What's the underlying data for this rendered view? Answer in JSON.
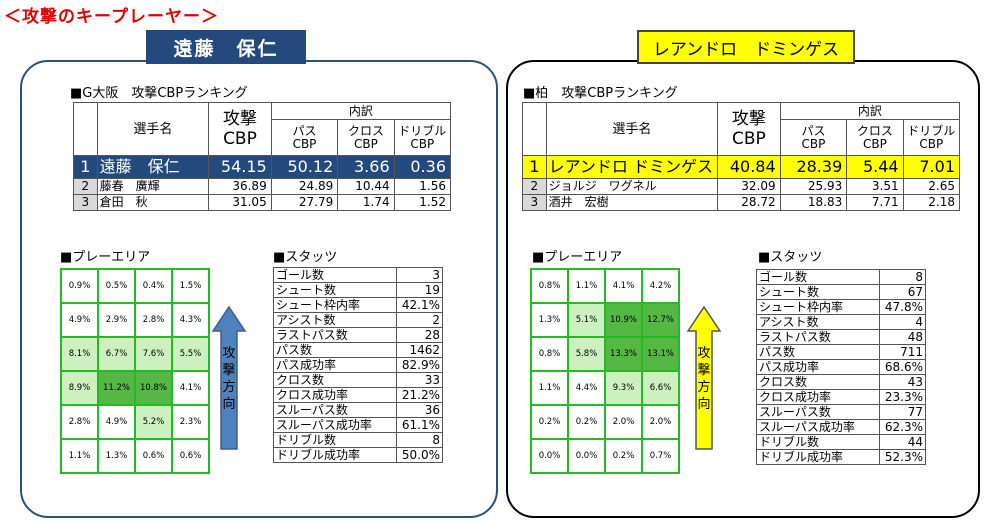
{
  "page_title": "＜攻撃のキープレーヤー＞",
  "left": {
    "player_badge": "遠藤　保仁",
    "ranking_title": "■G大阪　攻撃CBPランキング",
    "header": {
      "name": "選手名",
      "cbp_top": "攻撃",
      "cbp_bottom": "CBP",
      "breakdown": "内訳",
      "pass": "パス",
      "cross": "クロス",
      "dribble": "ドリブル",
      "sub_cbp": "CBP"
    },
    "rows": [
      {
        "rank": "1",
        "name": "遠藤　保仁",
        "cbp": "54.15",
        "pass": "50.12",
        "cross": "3.66",
        "dribble": "0.36"
      },
      {
        "rank": "2",
        "name": "藤春　廣輝",
        "cbp": "36.89",
        "pass": "24.89",
        "cross": "10.44",
        "dribble": "1.56"
      },
      {
        "rank": "3",
        "name": "倉田　秋",
        "cbp": "31.05",
        "pass": "27.79",
        "cross": "1.74",
        "dribble": "1.52"
      }
    ],
    "play_area_title": "■プレーエリア",
    "stats_title": "■スタッツ",
    "grid": [
      [
        "0.9%",
        "0.5%",
        "0.4%",
        "1.5%"
      ],
      [
        "4.9%",
        "2.9%",
        "2.8%",
        "4.3%"
      ],
      [
        "8.1%",
        "6.7%",
        "7.6%",
        "5.5%"
      ],
      [
        "8.9%",
        "11.2%",
        "10.8%",
        "4.1%"
      ],
      [
        "2.8%",
        "4.9%",
        "5.2%",
        "2.3%"
      ],
      [
        "1.1%",
        "1.3%",
        "0.6%",
        "0.6%"
      ]
    ],
    "grid_shade": [
      [
        0,
        0,
        0,
        0
      ],
      [
        0,
        0,
        0,
        0
      ],
      [
        1,
        1,
        1,
        1
      ],
      [
        1,
        3,
        3,
        0
      ],
      [
        0,
        0,
        1,
        0
      ],
      [
        0,
        0,
        0,
        0
      ]
    ],
    "arrow_color": "#4f81bd",
    "stats": [
      [
        "ゴール数",
        "3"
      ],
      [
        "シュート数",
        "19"
      ],
      [
        "シュート枠内率",
        "42.1%"
      ],
      [
        "アシスト数",
        "2"
      ],
      [
        "ラストパス数",
        "28"
      ],
      [
        "パス数",
        "1462"
      ],
      [
        "パス成功率",
        "82.9%"
      ],
      [
        "クロス数",
        "33"
      ],
      [
        "クロス成功率",
        "21.2%"
      ],
      [
        "スルーパス数",
        "36"
      ],
      [
        "スルーパス成功率",
        "61.1%"
      ],
      [
        "ドリブル数",
        "8"
      ],
      [
        "ドリブル成功率",
        "50.0%"
      ]
    ]
  },
  "right": {
    "player_badge": "レアンドロ　ドミンゲス",
    "ranking_title": "■柏　攻撃CBPランキング",
    "header": {
      "name": "選手名",
      "cbp_top": "攻撃",
      "cbp_bottom": "CBP",
      "breakdown": "内訳",
      "pass": "パス",
      "cross": "クロス",
      "dribble": "ドリブル",
      "sub_cbp": "CBP"
    },
    "rows": [
      {
        "rank": "1",
        "name": "レアンドロ ドミンゲス",
        "cbp": "40.84",
        "pass": "28.39",
        "cross": "5.44",
        "dribble": "7.01"
      },
      {
        "rank": "2",
        "name": "ジョルジ　ワグネル",
        "cbp": "32.09",
        "pass": "25.93",
        "cross": "3.51",
        "dribble": "2.65"
      },
      {
        "rank": "3",
        "name": "酒井　宏樹",
        "cbp": "28.72",
        "pass": "18.83",
        "cross": "7.71",
        "dribble": "2.18"
      }
    ],
    "play_area_title": "■プレーエリア",
    "stats_title": "■スタッツ",
    "grid": [
      [
        "0.8%",
        "1.1%",
        "4.1%",
        "4.2%"
      ],
      [
        "1.3%",
        "5.1%",
        "10.9%",
        "12.7%"
      ],
      [
        "0.8%",
        "5.8%",
        "13.3%",
        "13.1%"
      ],
      [
        "1.1%",
        "4.4%",
        "9.3%",
        "6.6%"
      ],
      [
        "0.2%",
        "0.2%",
        "2.0%",
        "2.0%"
      ],
      [
        "0.0%",
        "0.0%",
        "0.2%",
        "0.7%"
      ]
    ],
    "grid_shade": [
      [
        0,
        0,
        0,
        0
      ],
      [
        0,
        1,
        3,
        3
      ],
      [
        0,
        1,
        3,
        3
      ],
      [
        0,
        0,
        1,
        1
      ],
      [
        0,
        0,
        0,
        0
      ],
      [
        0,
        0,
        0,
        0
      ]
    ],
    "arrow_color": "#ffff00",
    "stats": [
      [
        "ゴール数",
        "8"
      ],
      [
        "シュート数",
        "67"
      ],
      [
        "シュート枠内率",
        "47.8%"
      ],
      [
        "アシスト数",
        "4"
      ],
      [
        "ラストパス数",
        "48"
      ],
      [
        "パス数",
        "711"
      ],
      [
        "パス成功率",
        "68.6%"
      ],
      [
        "クロス数",
        "43"
      ],
      [
        "クロス成功率",
        "23.3%"
      ],
      [
        "スルーパス数",
        "77"
      ],
      [
        "スルーパス成功率",
        "62.3%"
      ],
      [
        "ドリブル数",
        "44"
      ],
      [
        "ドリブル成功率",
        "52.3%"
      ]
    ]
  },
  "arrow_label": [
    "攻",
    "撃",
    "方",
    "向"
  ]
}
